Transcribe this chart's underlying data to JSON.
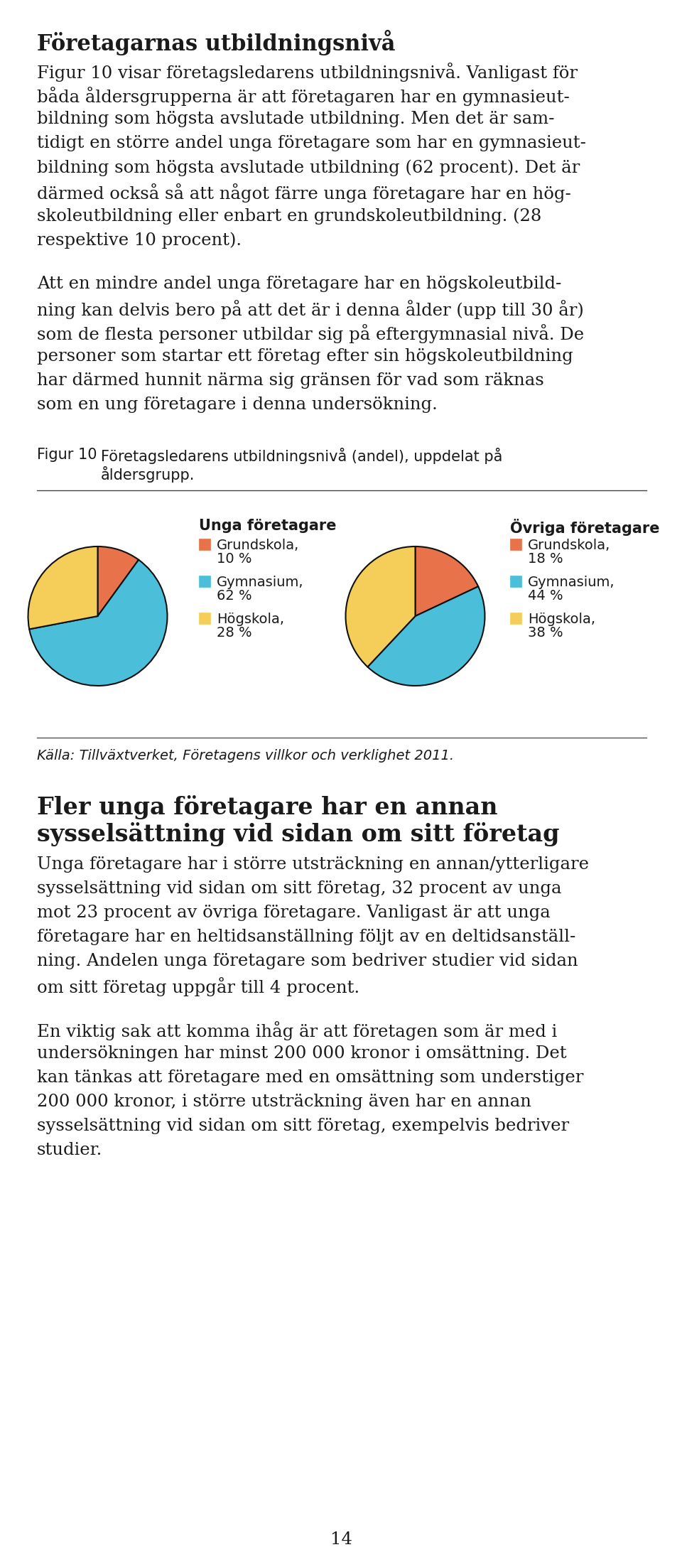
{
  "heading1": "Företagarnas utbildningsnivå",
  "para1": "Figur 10 visar företagsledarens utbildningsnivå. Vanligast för båda åldersgrupperna är att företagaren har en gymnasieutbildning som högsta avslutade utbildning. Men det är samtidigt en större andel unga företagare som har en gymnasieutbildning som högsta avslutade utbildning (62 procent). Det är därmed också så att något färre unga företagare har en högskoleutbildning eller enbart en grundskoleutbildning. (28 respektive 10 procent).",
  "para2": "Att en mindre andel unga företagare har en högskoleutbildning kan delvis bero på att det är i denna ålder (upp till 30 år) som de flesta personer utbildar sig på eftergymnasial nivå. De personer som startar ett företag efter sin högskoleutbildning har därmed hunnit närma sig gränsen för vad som räknas som en ung företagare i denna undersökning.",
  "figur_label": "Figur 10",
  "figur_caption_line1": "Företagsledarens utbildningsnivå (andel), uppdelat på",
  "figur_caption_line2": "åldersgrupp.",
  "pie1_title": "Unga företagare",
  "pie1_values": [
    10,
    62,
    28
  ],
  "pie1_colors": [
    "#E8724A",
    "#4BBFD9",
    "#F5CE5A"
  ],
  "pie1_legend": [
    [
      "Grundskola,",
      "10 %"
    ],
    [
      "Gymnasium,",
      "62 %"
    ],
    [
      "Högskola,",
      "28 %"
    ]
  ],
  "pie2_title": "Övriga företagare",
  "pie2_values": [
    18,
    44,
    38
  ],
  "pie2_colors": [
    "#E8724A",
    "#4BBFD9",
    "#F5CE5A"
  ],
  "pie2_legend": [
    [
      "Grundskola,",
      "18 %"
    ],
    [
      "Gymnasium,",
      "44 %"
    ],
    [
      "Högskola,",
      "38 %"
    ]
  ],
  "source_text": "Källa: Tillväxtverket, Företagens villkor och verklighet 2011.",
  "heading2_line1": "Fler unga företagare har en annan",
  "heading2_line2": "sysselsättning vid sidan om sitt företag",
  "para3": "Unga företagare har i större utsträckning en annan/ytterligare sysselsättning vid sidan om sitt företag, 32 procent av unga mot 23 procent av övriga företagare. Vanligast är att unga företagare har en heltidsanställning följt av en deltidsanställning. Andelen unga företagare som bedriver studier vid sidan om sitt företag uppgår till 4 procent.",
  "para4": "En viktig sak att komma ihåg är att företagen som är med i undersökningen har minst 200 000 kronor i omsättning. Det kan tänkas att företagare med en omsättning som understiger 200 000 kronor, i större utsträckning även har en annan sysselsättning vid sidan om sitt företag, exempelvis bedriver studier.",
  "page_number": "14",
  "bg_color": "#FFFFFF",
  "text_color": "#1A1A1A"
}
